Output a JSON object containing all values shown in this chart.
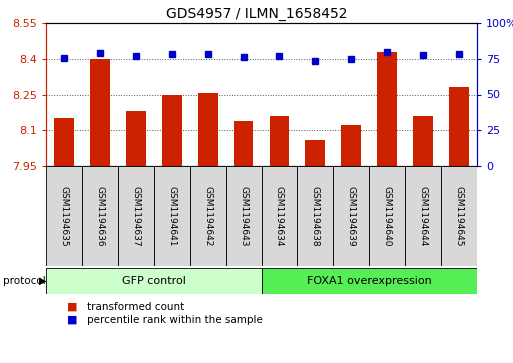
{
  "title": "GDS4957 / ILMN_1658452",
  "samples": [
    "GSM1194635",
    "GSM1194636",
    "GSM1194637",
    "GSM1194641",
    "GSM1194642",
    "GSM1194643",
    "GSM1194634",
    "GSM1194638",
    "GSM1194639",
    "GSM1194640",
    "GSM1194644",
    "GSM1194645"
  ],
  "transformed_count": [
    8.15,
    8.4,
    8.18,
    8.25,
    8.255,
    8.14,
    8.16,
    8.06,
    8.12,
    8.43,
    8.16,
    8.28
  ],
  "percentile_rank": [
    75.5,
    79.0,
    77.0,
    78.5,
    78.0,
    76.0,
    77.0,
    73.5,
    75.0,
    79.5,
    77.5,
    78.5
  ],
  "group1_label": "GFP control",
  "group2_label": "FOXA1 overexpression",
  "group1_count": 6,
  "group2_count": 6,
  "ylim_left": [
    7.95,
    8.55
  ],
  "ylim_right": [
    0,
    100
  ],
  "yticks_left": [
    7.95,
    8.1,
    8.25,
    8.4,
    8.55
  ],
  "yticks_right": [
    0,
    25,
    50,
    75,
    100
  ],
  "ytick_labels_left": [
    "7.95",
    "8.1",
    "8.25",
    "8.4",
    "8.55"
  ],
  "ytick_labels_right": [
    "0",
    "25",
    "50",
    "75",
    "100%"
  ],
  "bar_color": "#cc2200",
  "dot_color": "#0000cc",
  "group1_bg": "#ccffcc",
  "group2_bg": "#55ee55",
  "sample_bg": "#d8d8d8",
  "left_axis_color": "#cc2200",
  "right_axis_color": "#0000cc",
  "protocol_label": "protocol",
  "legend_count_label": "transformed count",
  "legend_percentile_label": "percentile rank within the sample",
  "fig_width": 5.13,
  "fig_height": 3.63,
  "fig_dpi": 100
}
